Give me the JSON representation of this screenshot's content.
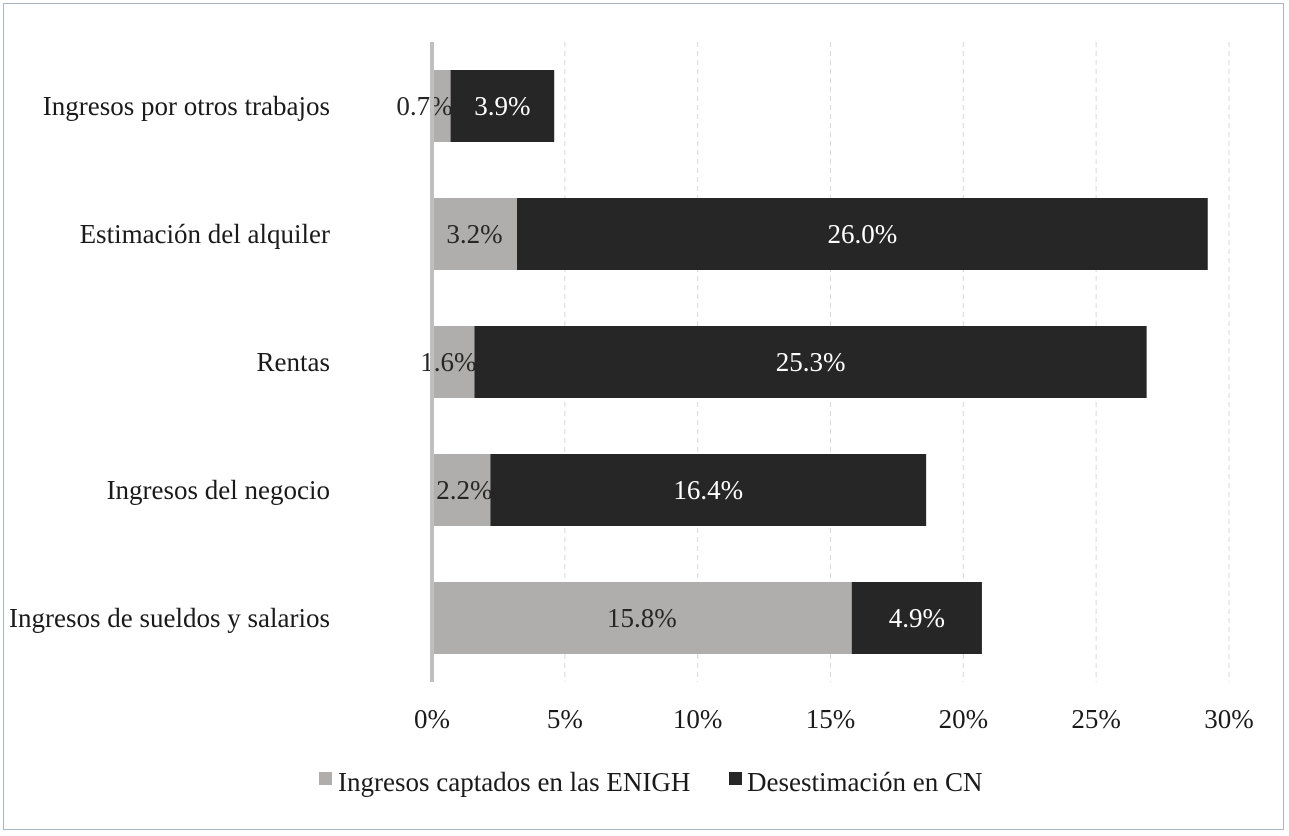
{
  "chart_data": {
    "type": "bar",
    "orientation": "horizontal",
    "stacked": true,
    "categories": [
      "Ingresos por otros trabajos",
      "Estimación del alquiler",
      "Rentas",
      "Ingresos del negocio",
      "Ingresos de sueldos y salarios"
    ],
    "series": [
      {
        "name": "Ingresos captados en las ENIGH",
        "values": [
          0.7,
          3.2,
          1.6,
          2.2,
          15.8
        ],
        "labels": [
          "0.7%",
          "3.2%",
          "1.6%",
          "2.2%",
          "15.8%"
        ],
        "color": "#b0aeac"
      },
      {
        "name": "Desestimación en CN",
        "values": [
          3.9,
          26.0,
          25.3,
          16.4,
          4.9
        ],
        "labels": [
          "3.9%",
          "26.0%",
          "25.3%",
          "16.4%",
          "4.9%"
        ],
        "color": "#262626"
      }
    ],
    "xlim": [
      0,
      30
    ],
    "xticks": [
      0,
      5,
      10,
      15,
      20,
      25,
      30
    ],
    "xtick_labels": [
      "0%",
      "5%",
      "10%",
      "15%",
      "20%",
      "25%",
      "30%"
    ],
    "grid": "vertical dashed",
    "legend_position": "bottom",
    "title": "",
    "xlabel": "",
    "ylabel": ""
  }
}
